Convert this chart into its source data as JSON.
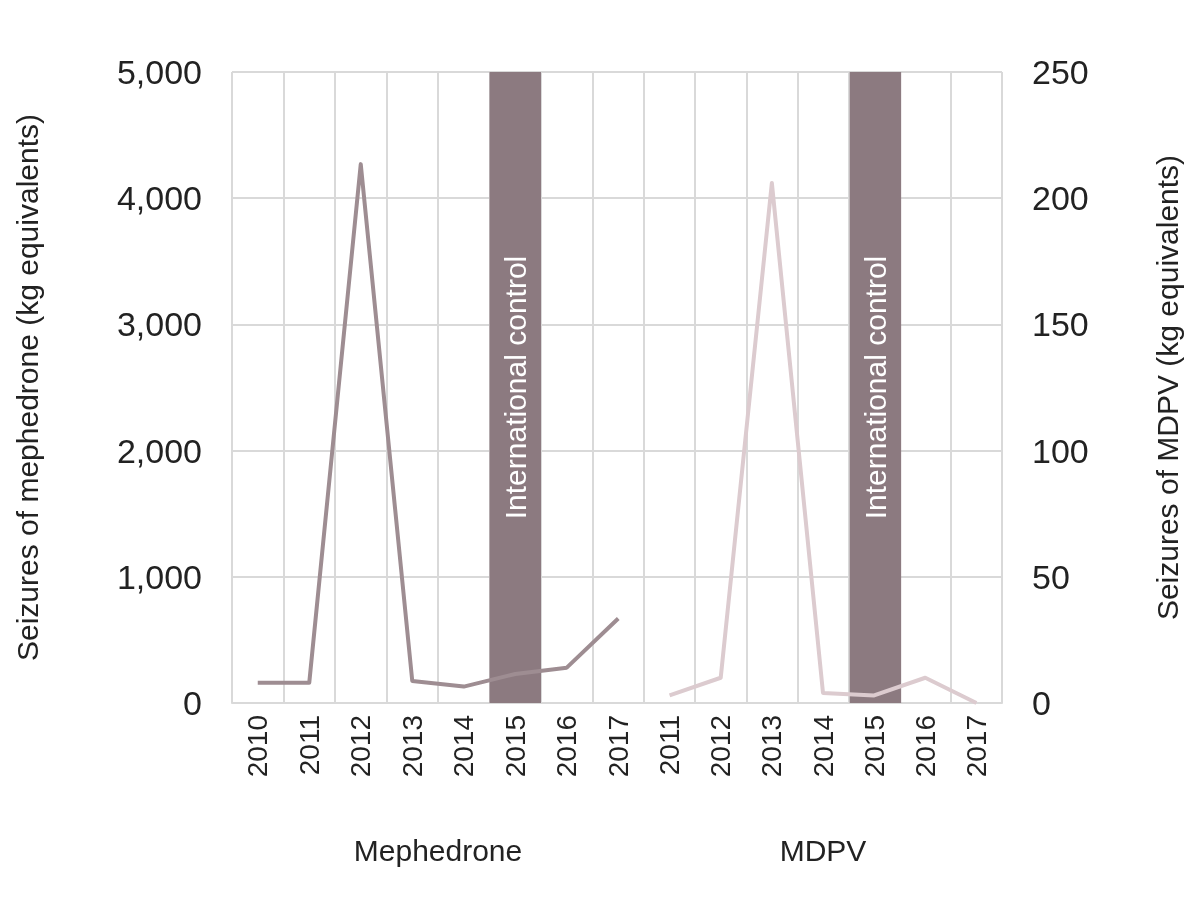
{
  "chart_data": [
    {
      "type": "line",
      "ylabel": "Seizures of mephedrone (kg equivalents)",
      "xlabel": "Mephedrone",
      "categories": [
        "2010",
        "2011",
        "2012",
        "2013",
        "2014",
        "2015",
        "2016",
        "2017"
      ],
      "series": [
        {
          "color": "#9e8d92",
          "values": [
            160,
            160,
            4270,
            175,
            130,
            230,
            280,
            670
          ]
        }
      ],
      "ylim": [
        0,
        5000
      ],
      "yticks": [
        {
          "value": 0,
          "label": "0"
        },
        {
          "value": 1000,
          "label": "1,000"
        },
        {
          "value": 2000,
          "label": "2,000"
        },
        {
          "value": 3000,
          "label": "3,000"
        },
        {
          "value": 4000,
          "label": "4,000"
        },
        {
          "value": 5000,
          "label": "5,000"
        }
      ],
      "bands": [
        {
          "axis": "x",
          "from": "2015",
          "to": "2015",
          "label": "International control",
          "color": "#8c7a80"
        }
      ],
      "grid": true,
      "marker": "none",
      "line_style": "solid"
    },
    {
      "type": "line",
      "y2label": "Seizures of MDPV (kg equivalents)",
      "xlabel": "MDPV",
      "categories": [
        "2011",
        "2012",
        "2013",
        "2014",
        "2015",
        "2016",
        "2017"
      ],
      "series": [
        {
          "color": "#dccbcf",
          "axis": "y2",
          "values": [
            3,
            10,
            206,
            4,
            3,
            10,
            0
          ]
        }
      ],
      "y2lim": [
        0,
        250
      ],
      "y2ticks": [
        0,
        50,
        100,
        150,
        200,
        250
      ],
      "bands": [
        {
          "axis": "x",
          "from": "2015",
          "to": "2015",
          "label": "International control",
          "color": "#8c7a80"
        }
      ],
      "grid": true,
      "marker": "none",
      "line_style": "solid"
    }
  ]
}
